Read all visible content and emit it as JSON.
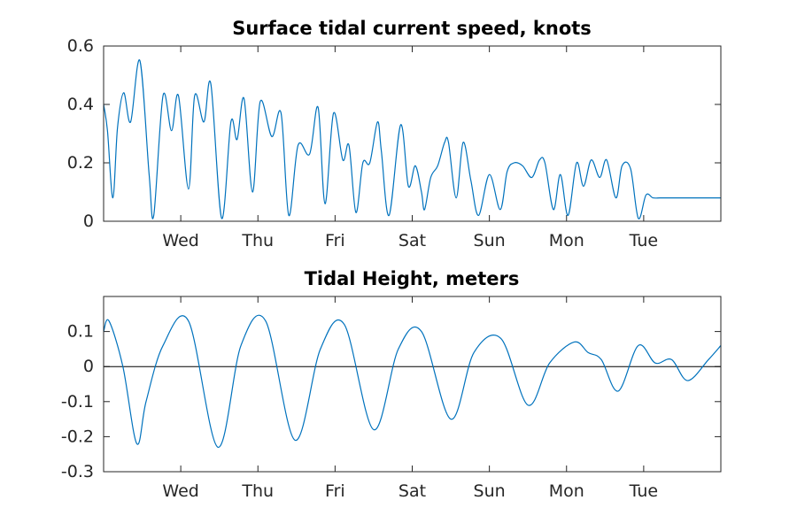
{
  "chart_data": [
    {
      "type": "line",
      "title": "Surface tidal current speed, knots",
      "xlabel": "",
      "ylabel": "",
      "xlim": [
        0,
        8
      ],
      "ylim": [
        0,
        0.6
      ],
      "yticks": [
        0,
        0.2,
        0.4,
        0.6
      ],
      "ytick_labels": [
        "0",
        "0.2",
        "0.4",
        "0.6"
      ],
      "xticks": [
        1,
        2,
        3,
        4,
        5,
        6,
        7
      ],
      "xtick_labels": [
        "Wed",
        "Thu",
        "Fri",
        "Sat",
        "Sun",
        "Mon",
        "Tue"
      ],
      "grid": false,
      "series": [
        {
          "color": "#0072bd",
          "x": [
            0.0,
            0.05,
            0.12,
            0.18,
            0.26,
            0.35,
            0.47,
            0.59,
            0.65,
            0.77,
            0.88,
            0.97,
            1.1,
            1.18,
            1.3,
            1.39,
            1.53,
            1.65,
            1.73,
            1.82,
            1.93,
            2.03,
            2.18,
            2.3,
            2.4,
            2.52,
            2.67,
            2.78,
            2.87,
            2.98,
            3.1,
            3.18,
            3.27,
            3.36,
            3.45,
            3.55,
            3.6,
            3.7,
            3.85,
            3.95,
            4.04,
            4.12,
            4.16,
            4.24,
            4.33,
            4.42,
            4.47,
            4.57,
            4.66,
            4.76,
            4.86,
            5.0,
            5.14,
            5.23,
            5.32,
            5.43,
            5.55,
            5.65,
            5.72,
            5.83,
            5.92,
            6.02,
            6.13,
            6.22,
            6.32,
            6.43,
            6.52,
            6.64,
            6.72,
            6.83,
            6.93,
            7.03,
            7.12,
            7.21,
            7.31,
            7.41,
            7.52,
            7.64,
            7.74,
            7.86,
            7.96,
            8.0
          ],
          "y": [
            0.4,
            0.31,
            0.08,
            0.32,
            0.44,
            0.34,
            0.55,
            0.16,
            0.02,
            0.43,
            0.31,
            0.43,
            0.11,
            0.43,
            0.34,
            0.47,
            0.01,
            0.34,
            0.28,
            0.42,
            0.1,
            0.41,
            0.29,
            0.37,
            0.02,
            0.26,
            0.23,
            0.39,
            0.06,
            0.37,
            0.21,
            0.26,
            0.03,
            0.2,
            0.2,
            0.34,
            0.24,
            0.02,
            0.33,
            0.12,
            0.19,
            0.1,
            0.04,
            0.15,
            0.19,
            0.27,
            0.27,
            0.08,
            0.27,
            0.14,
            0.02,
            0.16,
            0.04,
            0.17,
            0.2,
            0.19,
            0.15,
            0.21,
            0.2,
            0.04,
            0.16,
            0.02,
            0.2,
            0.12,
            0.21,
            0.15,
            0.21,
            0.08,
            0.19,
            0.18,
            0.01,
            0.09,
            0.08,
            0.08,
            0.08,
            0.08,
            0.08,
            0.08,
            0.08,
            0.08,
            0.08,
            0.08
          ]
        }
      ]
    },
    {
      "type": "line",
      "title": "Tidal Height, meters",
      "xlabel": "",
      "ylabel": "",
      "xlim": [
        0,
        8
      ],
      "ylim": [
        -0.3,
        0.2
      ],
      "yticks": [
        -0.3,
        -0.2,
        -0.1,
        0,
        0.1
      ],
      "ytick_labels": [
        "-0.3",
        "-0.2",
        "-0.1",
        "0",
        "0.1"
      ],
      "xticks": [
        1,
        2,
        3,
        4,
        5,
        6,
        7
      ],
      "xtick_labels": [
        "Wed",
        "Thu",
        "Fri",
        "Sat",
        "Sun",
        "Mon",
        "Tue"
      ],
      "grid": false,
      "zero_line": true,
      "series": [
        {
          "color": "#0072bd",
          "x": [
            0.0,
            0.07,
            0.25,
            0.43,
            0.55,
            0.77,
            1.1,
            1.48,
            1.78,
            2.1,
            2.48,
            2.81,
            3.12,
            3.5,
            3.82,
            4.12,
            4.5,
            4.8,
            5.15,
            5.5,
            5.78,
            6.1,
            6.28,
            6.45,
            6.67,
            6.93,
            7.15,
            7.36,
            7.57,
            7.84,
            8.0
          ],
          "y": [
            0.1,
            0.13,
            0.0,
            -0.22,
            -0.1,
            0.06,
            0.13,
            -0.23,
            0.06,
            0.13,
            -0.21,
            0.05,
            0.12,
            -0.18,
            0.05,
            0.1,
            -0.15,
            0.04,
            0.08,
            -0.11,
            0.01,
            0.07,
            0.04,
            0.02,
            -0.07,
            0.06,
            0.01,
            0.02,
            -0.04,
            0.02,
            0.06
          ]
        }
      ]
    }
  ]
}
